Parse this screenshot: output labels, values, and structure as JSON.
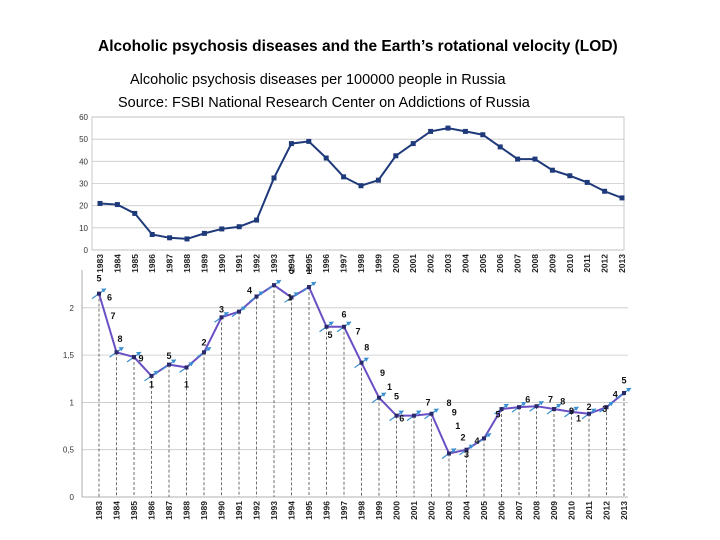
{
  "header": {
    "title": "Alcoholic psychosis diseases and the Earth’s rotational velocity (LOD)",
    "subtitle_line1": "Alcoholic psychosis diseases per 100000 people in Russia",
    "subtitle_line2": "Source: FSBI National Research Center on Addictions of Russia"
  },
  "colors": {
    "top_series": "#1f3a7a",
    "bottom_series": "#6a4fc4",
    "arrows": "#3a8fd0"
  },
  "chart_data": [
    {
      "type": "line",
      "title": "",
      "x": [
        "1983",
        "1984",
        "1985",
        "1986",
        "1987",
        "1988",
        "1989",
        "1990",
        "1991",
        "1992",
        "1993",
        "1994",
        "1995",
        "1996",
        "1997",
        "1998",
        "1999",
        "2000",
        "2001",
        "2002",
        "2003",
        "2004",
        "2005",
        "2006",
        "2007",
        "2008",
        "2009",
        "2010",
        "2011",
        "2012",
        "2013"
      ],
      "series": [
        {
          "values": [
            21,
            20.5,
            16.5,
            7,
            5.5,
            5,
            7.5,
            9.5,
            10.5,
            13.5,
            32.5,
            48,
            49,
            41.5,
            33,
            29,
            31.5,
            42.5,
            48,
            53.5,
            55,
            53.5,
            52,
            46.5,
            41,
            41,
            36,
            33.5,
            30.5,
            26.5,
            23.5
          ]
        }
      ],
      "ylim": [
        0,
        60
      ],
      "yticks": [
        "0",
        "10",
        "20",
        "30",
        "40",
        "50",
        "60"
      ],
      "grid": true,
      "marker": "square"
    },
    {
      "type": "line",
      "title": "",
      "x": [
        "1983",
        "1984",
        "1985",
        "1986",
        "1987",
        "1988",
        "1989",
        "1990",
        "1991",
        "1992",
        "1993",
        "1994",
        "1995",
        "1996",
        "1997",
        "1998",
        "1999",
        "2000",
        "2001",
        "2002",
        "2003",
        "2004",
        "2005",
        "2006",
        "2007",
        "2008",
        "2009",
        "2010",
        "2011",
        "2012",
        "2013"
      ],
      "series": [
        {
          "values": [
            2.15,
            1.53,
            1.48,
            1.28,
            1.4,
            1.37,
            1.53,
            1.9,
            1.96,
            2.12,
            2.24,
            2.11,
            2.22,
            1.8,
            1.8,
            1.42,
            1.05,
            0.86,
            0.86,
            0.88,
            0.46,
            0.5,
            0.62,
            0.93,
            0.95,
            0.96,
            0.93,
            0.9,
            0.88,
            0.95,
            1.1
          ]
        }
      ],
      "ylim": [
        0,
        2.4
      ],
      "yticks": [
        "0",
        "0,5",
        "1",
        "1,5",
        "2"
      ],
      "grid": true,
      "annotations": [
        "5",
        "6",
        "7",
        "8",
        "9",
        "1",
        "5",
        "1",
        "2",
        "3",
        "4",
        "1",
        "5",
        "1",
        "5",
        "6",
        "7",
        "8",
        "9",
        "1",
        "5",
        "6",
        "7",
        "8",
        "9",
        "1",
        "2",
        "3",
        "4",
        "5",
        "6",
        "7",
        "8",
        "9",
        "1",
        "2",
        "3",
        "4",
        "5"
      ]
    }
  ]
}
